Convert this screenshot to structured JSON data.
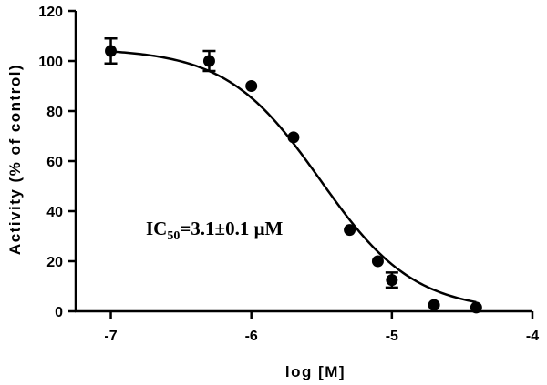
{
  "chart_data": {
    "type": "scatter",
    "xlabel": "log [M]",
    "ylabel": "Activity (% of control)",
    "xlim": [
      -7.25,
      -4
    ],
    "ylim": [
      0,
      120
    ],
    "xticks": [
      -7,
      -6,
      -5,
      -4
    ],
    "yticks": [
      0,
      20,
      40,
      60,
      80,
      100,
      120
    ],
    "xtick_labels": [
      "-7",
      "-6",
      "-5",
      "-4"
    ],
    "ytick_labels": [
      "0",
      "20",
      "40",
      "60",
      "80",
      "100",
      "120"
    ],
    "grid": false,
    "annotation": {
      "prefix": "IC",
      "subscript": "50",
      "suffix": "=3.1±0.1 μM"
    },
    "points": [
      {
        "x": -7.0,
        "y": 104,
        "err": 5
      },
      {
        "x": -6.3,
        "y": 100,
        "err": 4
      },
      {
        "x": -6.0,
        "y": 90,
        "err": 1
      },
      {
        "x": -5.7,
        "y": 69.5,
        "err": 1
      },
      {
        "x": -5.3,
        "y": 32.5,
        "err": 1
      },
      {
        "x": -5.1,
        "y": 20,
        "err": 1
      },
      {
        "x": -5.0,
        "y": 12.5,
        "err": 3
      },
      {
        "x": -4.7,
        "y": 2.5,
        "err": 1
      },
      {
        "x": -4.4,
        "y": 1.5,
        "err": 1
      }
    ],
    "fit": {
      "model": "four-parameter logistic",
      "top": 105,
      "bottom": 0,
      "logIC50": -5.51,
      "hill": -1.3,
      "x_range": [
        -7,
        -4.4
      ]
    }
  }
}
